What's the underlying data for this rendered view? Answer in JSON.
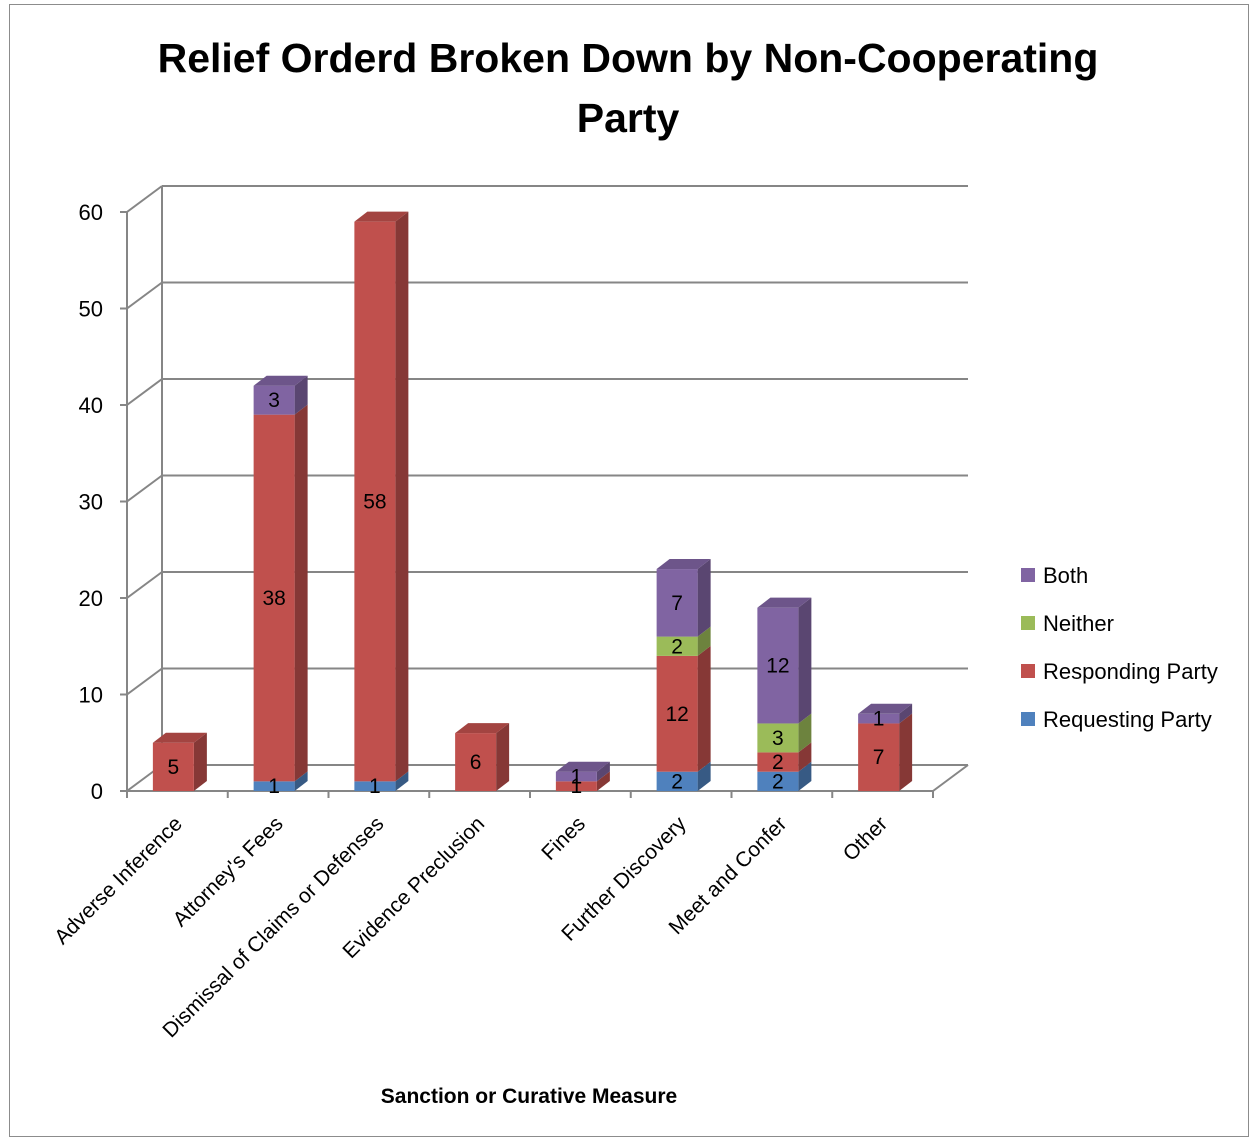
{
  "chart_data": {
    "type": "bar",
    "stacked": true,
    "three_d": true,
    "title": "Relief Orderd Broken Down by Non-Cooperating Party",
    "title_lines": [
      "Relief Orderd Broken Down by Non-Cooperating",
      "Party"
    ],
    "xlabel": "Sanction or Curative Measure",
    "ylabel": "",
    "ylim": [
      0,
      60
    ],
    "yticks": [
      0,
      10,
      20,
      30,
      40,
      50,
      60
    ],
    "grid": true,
    "legend_position": "right",
    "categories": [
      "Adverse Inference",
      "Attorney's Fees",
      "Dismissal of Claims or Defenses",
      "Evidence Preclusion",
      "Fines",
      "Further Discovery",
      "Meet and Confer",
      "Other"
    ],
    "series": [
      {
        "name": "Requesting Party",
        "color": "#4f81bd",
        "values": [
          0,
          1,
          1,
          0,
          0,
          2,
          2,
          0
        ]
      },
      {
        "name": "Responding Party",
        "color": "#c0504d",
        "values": [
          5,
          38,
          58,
          6,
          1,
          12,
          2,
          7
        ]
      },
      {
        "name": "Neither",
        "color": "#9bbb59",
        "values": [
          0,
          0,
          0,
          0,
          0,
          2,
          3,
          0
        ]
      },
      {
        "name": "Both",
        "color": "#8064a2",
        "values": [
          0,
          3,
          0,
          0,
          1,
          7,
          12,
          1
        ]
      }
    ]
  }
}
